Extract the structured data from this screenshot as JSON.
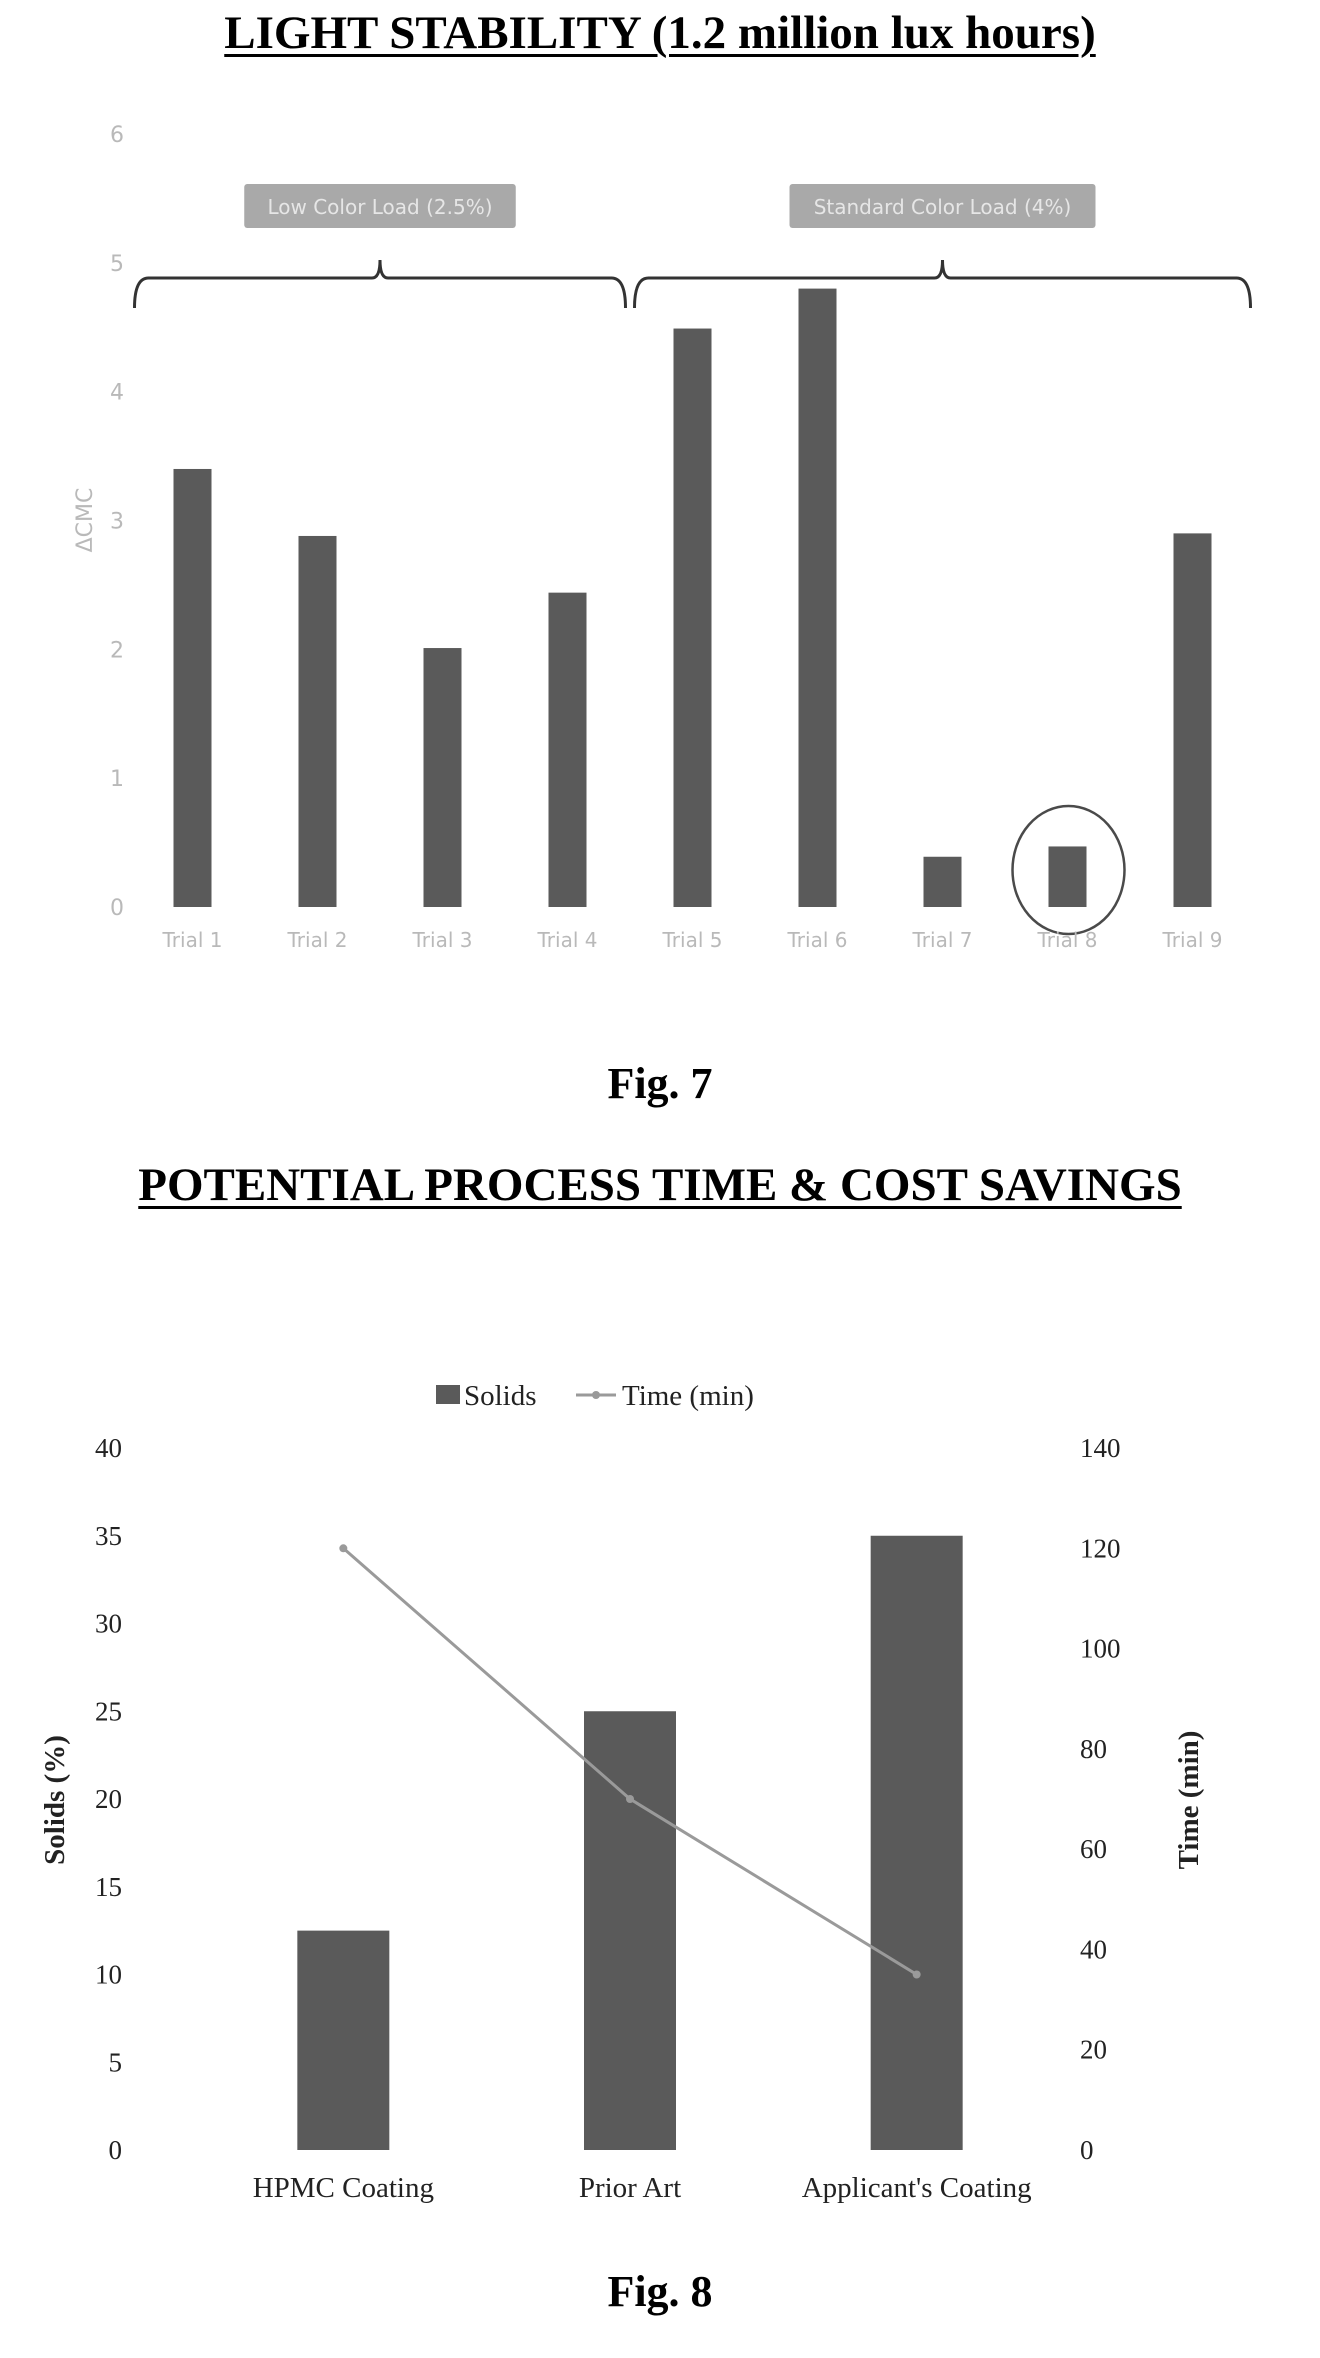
{
  "fig7": {
    "title": "LIGHT STABILITY (1.2 million lux hours)",
    "caption": "Fig. 7",
    "chart_data": {
      "type": "bar",
      "ylabel": "ΔCMC",
      "xlabel": "",
      "ylim": [
        0,
        6
      ],
      "y_ticks": [
        "0",
        "1",
        "2",
        "3",
        "4",
        "5",
        "6"
      ],
      "grid": false,
      "categories": [
        "Trial 1",
        "Trial 2",
        "Trial 3",
        "Trial 4",
        "Trial 5",
        "Trial 6",
        "Trial 7",
        "Trial 8",
        "Trial 9"
      ],
      "values": [
        3.4,
        2.88,
        2.01,
        2.44,
        4.49,
        4.8,
        0.39,
        0.47,
        2.9
      ],
      "bar_color": "#5a5a5a",
      "annotations": [
        {
          "text": "Low Color Load (2.5%)",
          "spans": [
            "Trial 1",
            "Trial 4"
          ]
        },
        {
          "text": "Standard Color Load (4%)",
          "spans": [
            "Trial 5",
            "Trial 9"
          ]
        }
      ],
      "highlighted": "Trial 8"
    }
  },
  "fig8": {
    "title": "POTENTIAL PROCESS TIME & COST SAVINGS",
    "caption": "Fig. 8",
    "chart_data": {
      "type": "bar",
      "categories": [
        "HPMC Coating",
        "Prior Art",
        "Applicant's Coating"
      ],
      "ylabel": "Solids (%)",
      "y2label": "Time (min)",
      "xlabel": "",
      "ylim": [
        0,
        40
      ],
      "y2lim": [
        0,
        140
      ],
      "y_ticks": [
        "0",
        "5",
        "10",
        "15",
        "20",
        "25",
        "30",
        "35",
        "40"
      ],
      "y2_ticks": [
        "0",
        "20",
        "40",
        "60",
        "80",
        "100",
        "120",
        "140"
      ],
      "legend_position": "top",
      "grid": false,
      "series": [
        {
          "name": "Solids",
          "type": "bar",
          "axis": "left",
          "values": [
            12.5,
            25,
            35
          ],
          "color": "#5a5a5a"
        },
        {
          "name": "Time (min)",
          "type": "line",
          "axis": "right",
          "values": [
            120,
            70,
            35
          ],
          "color": "#9a9a9a"
        }
      ]
    }
  }
}
